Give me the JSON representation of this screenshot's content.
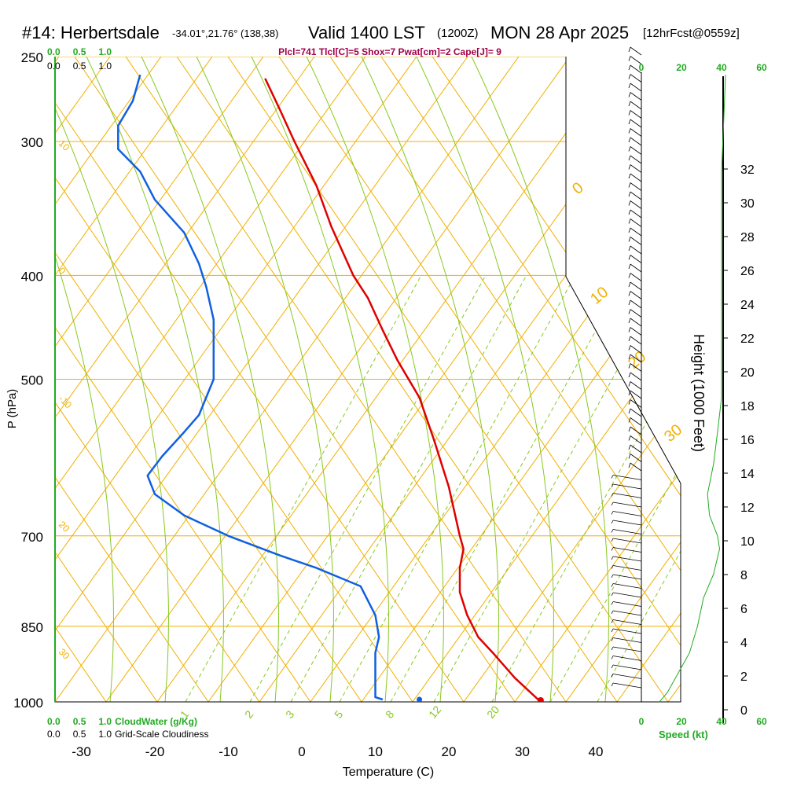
{
  "header": {
    "station": "#14: Herbertsdale",
    "coords": "-34.01°,21.76° (138,38)",
    "valid": "Valid 1400 LST",
    "zulu": "(1200Z)",
    "date": "MON 28 Apr 2025",
    "forecast": "[12hrFcst@0559z]",
    "indices": "Plcl=741 Tlcl[C]=5 Shox=7 Pwat[cm]=2 Cape[J]= 9"
  },
  "colors": {
    "isotherm": "#f0b000",
    "dry_adiabat": "#f0b000",
    "moist_adiabat": "#88c820",
    "mixing_ratio": "#88c820",
    "temperature": "#e00000",
    "dewpoint": "#1060e0",
    "text_green": "#22aa22",
    "text_magenta": "#a0004a"
  },
  "chart_data": {
    "type": "line",
    "xlabel": "Temperature (C)",
    "ylabel": "P (hPa)",
    "x_ticks": [
      -30,
      -20,
      -10,
      0,
      10,
      20,
      30,
      40
    ],
    "pressure_ticks": [
      250,
      300,
      400,
      500,
      700,
      850,
      1000
    ],
    "height_label": "Height (1000 Feet)",
    "height_ticks": [
      0,
      2,
      4,
      6,
      8,
      10,
      12,
      14,
      16,
      18,
      20,
      22,
      24,
      26,
      28,
      30,
      32
    ],
    "dry_adiabat_labels": [
      "-10",
      "0",
      "10",
      "20",
      "30"
    ],
    "moist_adiabat_labels": [
      "0",
      "10",
      "20",
      "30"
    ],
    "mixing_ratio_labels": [
      "1",
      "2",
      "3",
      "5",
      "8",
      "12",
      "20"
    ],
    "cloud_scale": [
      "0.0",
      "0.5",
      "1.0"
    ],
    "cloud_water_label": "CloudWater (g/Kg)",
    "cloudiness_label": "Grid-Scale Cloudiness",
    "speed_label": "Speed (kt)",
    "speed_ticks": [
      "0",
      "20",
      "40",
      "60"
    ],
    "series": [
      {
        "id": "temperature",
        "points": [
          [
            32.5,
            1000
          ],
          [
            29,
            950
          ],
          [
            26,
            900
          ],
          [
            24,
            870
          ],
          [
            22.5,
            830
          ],
          [
            21.5,
            790
          ],
          [
            21.5,
            750
          ],
          [
            22,
            720
          ],
          [
            21.5,
            700
          ],
          [
            20,
            630
          ],
          [
            18,
            570
          ],
          [
            16,
            520
          ],
          [
            13,
            480
          ],
          [
            11,
            450
          ],
          [
            9,
            420
          ],
          [
            7,
            400
          ],
          [
            4,
            360
          ],
          [
            2,
            330
          ],
          [
            -1,
            300
          ],
          [
            -3,
            280
          ],
          [
            -5,
            262
          ]
        ]
      },
      {
        "id": "dewpoint",
        "points": [
          [
            11,
            995
          ],
          [
            10,
            990
          ],
          [
            10,
            960
          ],
          [
            10,
            930
          ],
          [
            10,
            900
          ],
          [
            10.5,
            870
          ],
          [
            10,
            830
          ],
          [
            8,
            780
          ],
          [
            2,
            750
          ],
          [
            -3,
            730
          ],
          [
            -10,
            700
          ],
          [
            -16,
            670
          ],
          [
            -20,
            640
          ],
          [
            -21,
            615
          ],
          [
            -19,
            590
          ],
          [
            -16,
            560
          ],
          [
            -14,
            540
          ],
          [
            -12,
            500
          ],
          [
            -12,
            470
          ],
          [
            -12,
            440
          ],
          [
            -13,
            410
          ],
          [
            -14,
            390
          ],
          [
            -16,
            365
          ],
          [
            -20,
            340
          ],
          [
            -22,
            320
          ],
          [
            -25,
            305
          ],
          [
            -25,
            290
          ],
          [
            -23,
            275
          ],
          [
            -22,
            260
          ]
        ]
      }
    ],
    "surface_dewpoint": [
      16,
      995
    ],
    "wind_speed_profile": [
      [
        9,
        1000
      ],
      [
        13,
        980
      ],
      [
        24,
        900
      ],
      [
        28,
        850
      ],
      [
        31,
        800
      ],
      [
        36,
        760
      ],
      [
        39,
        720
      ],
      [
        38,
        700
      ],
      [
        34,
        670
      ],
      [
        33,
        640
      ],
      [
        36,
        600
      ],
      [
        38,
        560
      ],
      [
        40,
        520
      ],
      [
        40,
        480
      ],
      [
        40,
        440
      ],
      [
        40,
        400
      ],
      [
        40,
        360
      ],
      [
        40,
        320
      ],
      [
        41,
        290
      ],
      [
        42,
        260
      ]
    ]
  }
}
